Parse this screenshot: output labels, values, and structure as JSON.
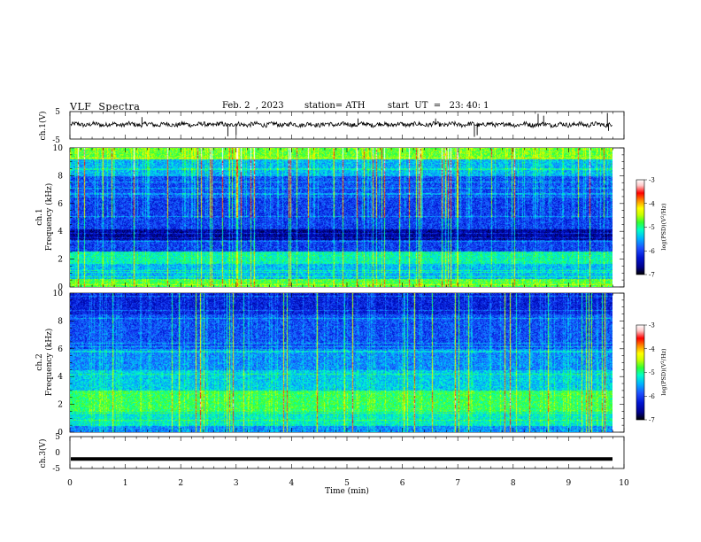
{
  "header": {
    "title": "VLF  Spectra",
    "date": "Feb. 2  , 2023",
    "station": "station= ATH",
    "start": "start  UT  =   23: 40: 1"
  },
  "chart_data": [
    {
      "type": "line",
      "panel": "ch1-waveform",
      "ylabel": "ch.1(V)",
      "ylim": [
        -5,
        5
      ],
      "yticks": [
        "5",
        "-5"
      ],
      "xlim": [
        0,
        10
      ],
      "series_color": "#000000",
      "typical_level": 0.3
    },
    {
      "type": "heatmap",
      "panel": "ch1-spectrogram",
      "ylabel": "ch.1\nFrequency  (kHz)",
      "ylim": [
        0,
        10
      ],
      "yticks": [
        "0",
        "2",
        "4",
        "6",
        "8",
        "10"
      ],
      "xlim": [
        0,
        10
      ],
      "data_end_min": 9.8,
      "colorbar": {
        "label": "log(PSD)(V²/Hz)",
        "ticks": [
          "-3",
          "-4",
          "-5",
          "-6",
          "-7"
        ],
        "range": [
          -7,
          -3
        ]
      }
    },
    {
      "type": "heatmap",
      "panel": "ch2-spectrogram",
      "ylabel": "ch.2\nFrequency  (kHz)",
      "ylim": [
        0,
        10
      ],
      "yticks": [
        "0",
        "2",
        "4",
        "6",
        "8",
        "10"
      ],
      "xlim": [
        0,
        10
      ],
      "data_end_min": 9.8,
      "colorbar": {
        "label": "log(PSD)(V²/Hz)",
        "ticks": [
          "-3",
          "-4",
          "-5",
          "-6",
          "-7"
        ],
        "range": [
          -7,
          -3
        ]
      }
    },
    {
      "type": "line",
      "panel": "ch3-waveform",
      "ylabel": "ch.3(V)",
      "ylim": [
        -5,
        5
      ],
      "yticks": [
        "5",
        "0",
        "-5"
      ],
      "xlim": [
        0,
        10
      ],
      "xlabel": "Time  (min)",
      "xticks": [
        "0",
        "1",
        "2",
        "3",
        "4",
        "5",
        "6",
        "7",
        "8",
        "9",
        "10"
      ],
      "series_color": "#000000",
      "constant_level": -2
    }
  ],
  "colormap": [
    "#000000",
    "#00008c",
    "#0014d2",
    "#1e50ff",
    "#00b4ff",
    "#00ffc8",
    "#32ff32",
    "#c8ff00",
    "#ffff00",
    "#ff8c00",
    "#ff0000",
    "#ffc8c8",
    "#ffffff"
  ]
}
